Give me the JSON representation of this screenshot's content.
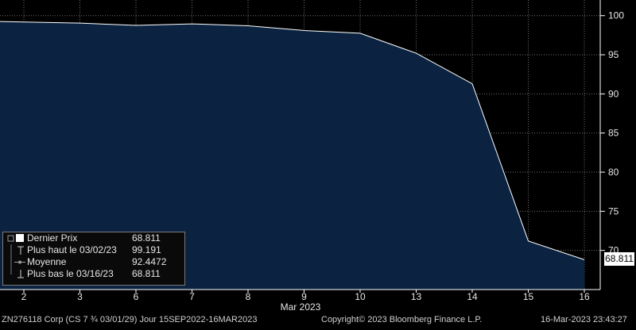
{
  "chart_data": {
    "type": "area",
    "x": [
      "2",
      "3",
      "6",
      "7",
      "8",
      "9",
      "10",
      "13",
      "14",
      "15",
      "16"
    ],
    "series": [
      {
        "values": [
          99.191,
          99.05,
          98.75,
          98.95,
          98.7,
          98.1,
          97.75,
          95.2,
          91.3,
          71.2,
          68.811
        ]
      }
    ],
    "xlabel": "Mar 2023",
    "ylim": [
      65,
      102
    ],
    "yticks": [
      70,
      75,
      80,
      85,
      90,
      95,
      100
    ],
    "y_axis_side": "right",
    "grid": true,
    "last_value_label": "68.811",
    "colors": {
      "fill": "#0b2340",
      "line": "#ffffff",
      "grid": "#6f6f6f",
      "background": "#000000"
    }
  },
  "legend": {
    "rows": [
      {
        "icon": "square-icon",
        "label": "Dernier Prix",
        "value": "68.811"
      },
      {
        "icon": "high-marker-icon",
        "label": "Plus haut le 03/02/23",
        "value": "99.191"
      },
      {
        "icon": "average-icon",
        "label": "Moyenne",
        "value": "92.4472"
      },
      {
        "icon": "low-marker-icon",
        "label": "Plus bas le 03/16/23",
        "value": "68.811"
      }
    ]
  },
  "footer": {
    "security": "ZN276118 Corp (CS 7 ¾ 03/01/29)  Jour 15SEP2022-16MAR2023",
    "copyright": "Copyright© 2023 Bloomberg Finance L.P.",
    "timestamp": "16-Mar-2023 23:43:27"
  }
}
